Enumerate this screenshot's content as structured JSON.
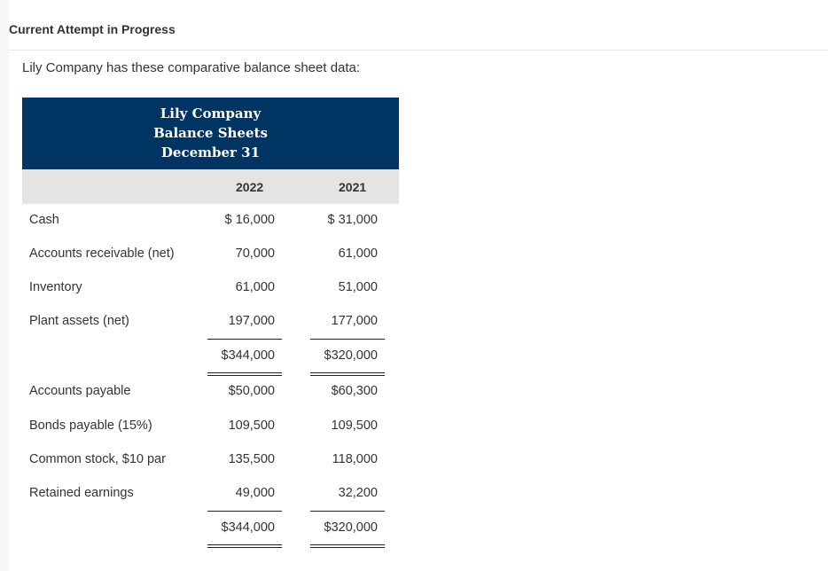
{
  "header": {
    "attempt": "Current Attempt in Progress",
    "intro": "Lily Company has these comparative balance sheet data:"
  },
  "table": {
    "title": [
      "Lily Company",
      "Balance Sheets",
      "December 31"
    ],
    "years": [
      "2022",
      "2021"
    ],
    "rows": [
      {
        "label": "Cash",
        "v2022": "$ 16,000",
        "v2021": "$ 31,000"
      },
      {
        "label": "Accounts receivable (net)",
        "v2022": "70,000",
        "v2021": "61,000"
      },
      {
        "label": "Inventory",
        "v2022": "61,000",
        "v2021": "51,000"
      },
      {
        "label": "Plant assets (net)",
        "v2022": "197,000",
        "v2021": "177,000"
      },
      {
        "label": "",
        "v2022": "$344,000",
        "v2021": "$320,000"
      },
      {
        "label": "Accounts payable",
        "v2022": "$50,000",
        "v2021": "$60,300"
      },
      {
        "label": "Bonds payable (15%)",
        "v2022": "109,500",
        "v2021": "109,500"
      },
      {
        "label": "Common stock, $10 par",
        "v2022": "135,500",
        "v2021": "118,000"
      },
      {
        "label": "Retained earnings",
        "v2022": "49,000",
        "v2021": "32,200"
      },
      {
        "label": "",
        "v2022": "$344,000",
        "v2021": "$320,000"
      }
    ]
  }
}
